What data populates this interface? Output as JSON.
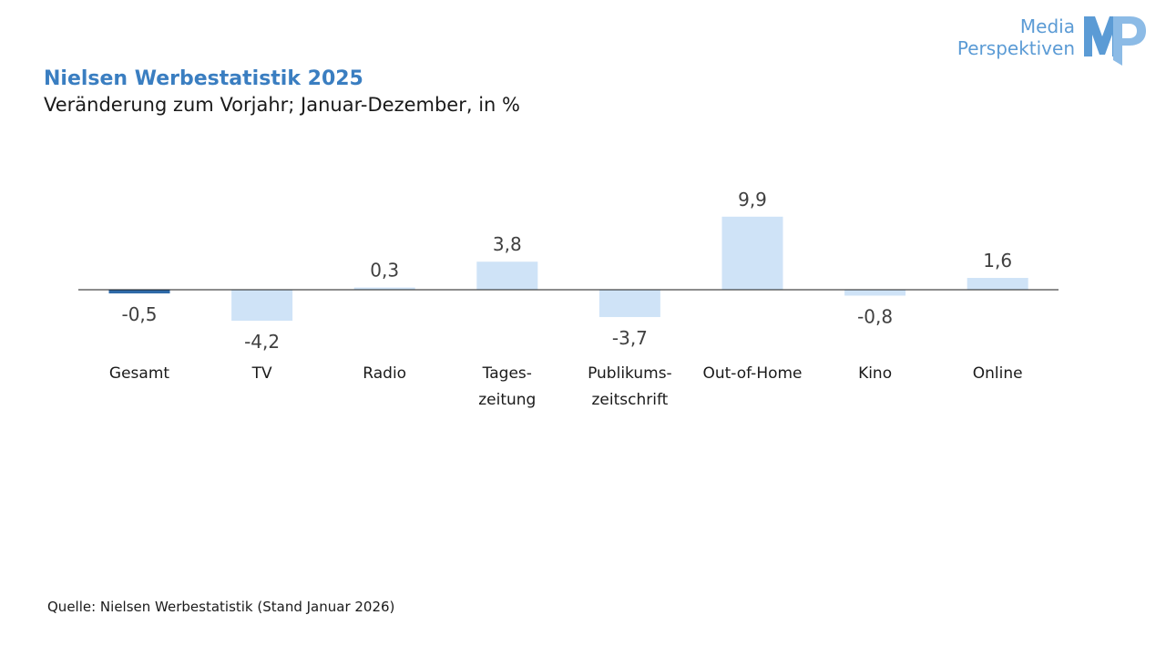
{
  "header": {
    "title": "Nielsen Werbestatistik 2025",
    "subtitle": "Veränderung zum Vorjahr; Januar-Dezember, in %"
  },
  "logo": {
    "line1": "Media",
    "line2": "Perspektiven",
    "mark": "MP"
  },
  "footer": {
    "source": "Quelle: Nielsen Werbestatistik (Stand Januar 2026)"
  },
  "colors": {
    "title": "#3a7ec1",
    "highlight_bar": "#2e6aa8",
    "bar": "#cfe3f7",
    "axis": "#1a1a1a",
    "logo": "#5b9bd5"
  },
  "chart_data": {
    "type": "bar",
    "title": "Nielsen Werbestatistik 2025",
    "subtitle": "Veränderung zum Vorjahr; Januar-Dezember, in %",
    "categories": [
      [
        "Gesamt"
      ],
      [
        "TV"
      ],
      [
        "Radio"
      ],
      [
        "Tages-",
        "zeitung"
      ],
      [
        "Publikums-",
        "zeitschrift"
      ],
      [
        "Out-of-Home"
      ],
      [
        "Kino"
      ],
      [
        "Online"
      ]
    ],
    "values": [
      -0.5,
      -4.2,
      0.3,
      3.8,
      -3.7,
      9.9,
      -0.8,
      1.6
    ],
    "value_labels": [
      "-0,5",
      "-4,2",
      "0,3",
      "3,8",
      "-3,7",
      "9,9",
      "-0,8",
      "1,6"
    ],
    "highlight_index": 0,
    "grid": false,
    "legend": "none"
  }
}
